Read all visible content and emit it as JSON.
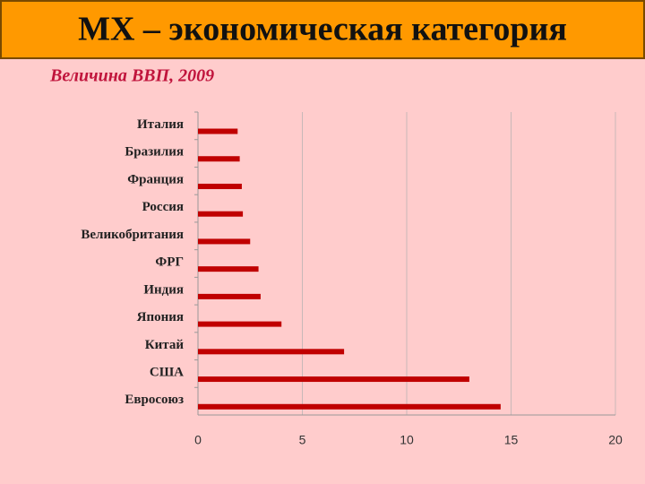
{
  "slide_title": "МХ – экономическая категория",
  "chart_data": {
    "type": "bar",
    "orientation": "horizontal",
    "title": "Величина ВВП, 2009",
    "categories": [
      "Италия",
      "Бразилия",
      "Франция",
      "Россия",
      "Великобритания",
      "ФРГ",
      "Индия",
      "Япония",
      "Китай",
      "США",
      "Евросоюз"
    ],
    "values": [
      1.9,
      2.0,
      2.1,
      2.15,
      2.5,
      2.9,
      3.0,
      4.0,
      7.0,
      13.0,
      14.5
    ],
    "color": "#c00000",
    "xlim": [
      0,
      20
    ],
    "xticks": [
      0,
      5,
      10,
      15,
      20
    ],
    "grid": true
  }
}
